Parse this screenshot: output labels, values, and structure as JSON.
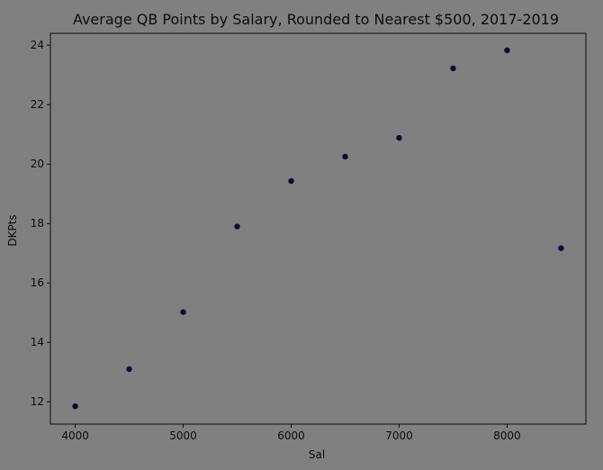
{
  "chart_data": {
    "type": "scatter",
    "title": "Average QB Points by Salary, Rounded to Nearest $500, 2017-2019",
    "xlabel": "Sal",
    "ylabel": "DKPts",
    "xlim": [
      3770,
      8730
    ],
    "ylim": [
      11.25,
      24.4
    ],
    "xticks": [
      4000,
      5000,
      6000,
      7000,
      8000
    ],
    "yticks": [
      12,
      14,
      16,
      18,
      20,
      22,
      24
    ],
    "grid": false,
    "marker_color": "#0a0a3c",
    "background_color": "#808080",
    "points": [
      {
        "x": 4000,
        "y": 11.85
      },
      {
        "x": 4500,
        "y": 13.1
      },
      {
        "x": 5000,
        "y": 15.02
      },
      {
        "x": 5500,
        "y": 17.9
      },
      {
        "x": 6000,
        "y": 19.43
      },
      {
        "x": 6500,
        "y": 20.25
      },
      {
        "x": 7000,
        "y": 20.88
      },
      {
        "x": 7500,
        "y": 23.22
      },
      {
        "x": 8000,
        "y": 23.83
      },
      {
        "x": 8500,
        "y": 17.17
      }
    ]
  }
}
